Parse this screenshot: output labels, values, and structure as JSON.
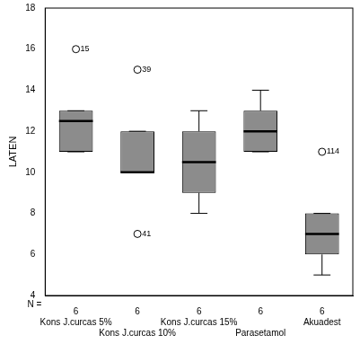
{
  "chart_data": {
    "type": "boxplot",
    "categories": [
      "Kons J.curcas 5%",
      "Kons J.curcas 10%",
      "Kons J.curcas 15%",
      "Parasetamol",
      "Akuadest"
    ],
    "n_label": "N =",
    "n": [
      6,
      6,
      6,
      6,
      6
    ],
    "y_label": "LATEN",
    "ylim": [
      4,
      18
    ],
    "yticks": [
      4,
      6,
      8,
      10,
      12,
      14,
      16,
      18
    ],
    "color": "#8c8c8c",
    "grid": false,
    "boxes": [
      {
        "whisker_low": 11,
        "q1": 11,
        "median": 12.5,
        "q3": 13,
        "whisker_high": 13,
        "outliers": [
          {
            "value": 16,
            "label": "15"
          }
        ]
      },
      {
        "whisker_low": 10,
        "q1": 10,
        "median": 10,
        "q3": 12,
        "whisker_high": 12,
        "outliers": [
          {
            "value": 15,
            "label": "39"
          },
          {
            "value": 7,
            "label": "41"
          }
        ]
      },
      {
        "whisker_low": 8,
        "q1": 9,
        "median": 10.5,
        "q3": 12,
        "whisker_high": 13,
        "outliers": []
      },
      {
        "whisker_low": 11,
        "q1": 11,
        "median": 12,
        "q3": 13,
        "whisker_high": 14,
        "outliers": []
      },
      {
        "whisker_low": 5,
        "q1": 6,
        "median": 7,
        "q3": 8,
        "whisker_high": 8,
        "outliers": [
          {
            "value": 11,
            "label": "114"
          }
        ]
      }
    ]
  }
}
